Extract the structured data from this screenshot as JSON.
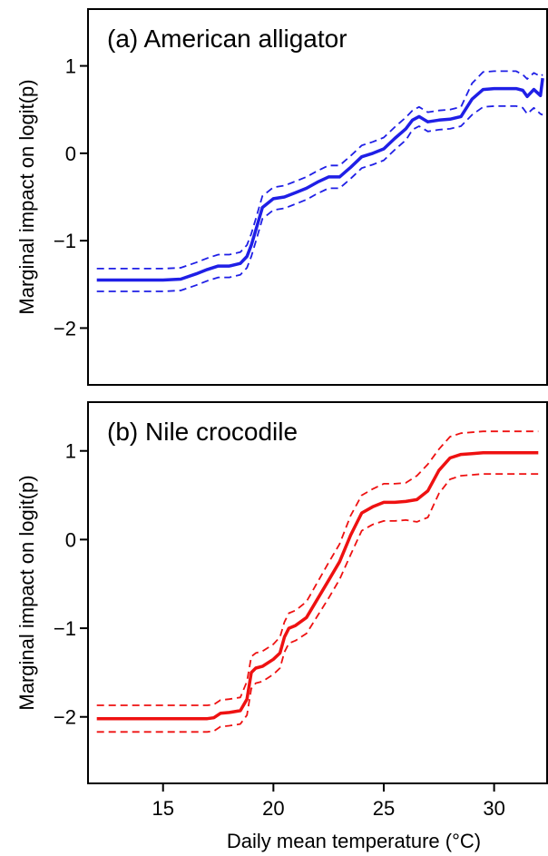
{
  "chart_data": [
    {
      "type": "line",
      "title": "(a) American alligator",
      "xlabel": "",
      "ylabel": "Marginal impact on logit(p)",
      "xlim": [
        11.6,
        32.4
      ],
      "ylim": [
        -2.65,
        1.65
      ],
      "xticks": [
        15,
        20,
        25,
        30
      ],
      "yticks": [
        1,
        0,
        -1,
        -2
      ],
      "ytick_labels": [
        "1",
        "0",
        "−1",
        "−2"
      ],
      "grid": false,
      "color": "#1f1fe6",
      "x": [
        12,
        13,
        14,
        15,
        15.8,
        16.5,
        17,
        17.5,
        18,
        18.5,
        18.8,
        19,
        19.2,
        19.5,
        20,
        20.5,
        21,
        21.5,
        22,
        22.5,
        23,
        23.5,
        24,
        24.5,
        25,
        25.5,
        26,
        26.3,
        26.6,
        27,
        27.5,
        28,
        28.5,
        29,
        29.5,
        30,
        30.5,
        31,
        31.3,
        31.5,
        31.8,
        32.1,
        32.2
      ],
      "series": [
        {
          "role": "estimate",
          "style": "solid",
          "values": [
            -1.45,
            -1.45,
            -1.45,
            -1.45,
            -1.44,
            -1.38,
            -1.33,
            -1.29,
            -1.29,
            -1.26,
            -1.18,
            -1.05,
            -0.88,
            -0.62,
            -0.52,
            -0.5,
            -0.45,
            -0.4,
            -0.33,
            -0.27,
            -0.27,
            -0.16,
            -0.04,
            0.0,
            0.05,
            0.17,
            0.28,
            0.38,
            0.42,
            0.36,
            0.38,
            0.39,
            0.42,
            0.62,
            0.73,
            0.74,
            0.74,
            0.74,
            0.72,
            0.65,
            0.73,
            0.66,
            0.86
          ]
        },
        {
          "role": "upper",
          "style": "dashed",
          "values": [
            -1.32,
            -1.32,
            -1.32,
            -1.32,
            -1.31,
            -1.25,
            -1.2,
            -1.16,
            -1.16,
            -1.13,
            -1.05,
            -0.92,
            -0.75,
            -0.49,
            -0.39,
            -0.37,
            -0.32,
            -0.27,
            -0.2,
            -0.14,
            -0.14,
            -0.03,
            0.09,
            0.13,
            0.18,
            0.3,
            0.41,
            0.49,
            0.53,
            0.47,
            0.49,
            0.5,
            0.53,
            0.8,
            0.93,
            0.94,
            0.94,
            0.94,
            0.9,
            0.85,
            0.92,
            0.88,
            0.9
          ]
        },
        {
          "role": "lower",
          "style": "dashed",
          "values": [
            -1.58,
            -1.58,
            -1.58,
            -1.58,
            -1.57,
            -1.51,
            -1.46,
            -1.42,
            -1.42,
            -1.39,
            -1.31,
            -1.18,
            -1.01,
            -0.75,
            -0.65,
            -0.63,
            -0.58,
            -0.53,
            -0.46,
            -0.4,
            -0.4,
            -0.29,
            -0.17,
            -0.13,
            -0.08,
            0.04,
            0.15,
            0.27,
            0.31,
            0.25,
            0.27,
            0.28,
            0.31,
            0.44,
            0.53,
            0.54,
            0.54,
            0.54,
            0.52,
            0.45,
            0.52,
            0.45,
            0.44
          ]
        }
      ]
    },
    {
      "type": "line",
      "title": "(b) Nile crocodile",
      "xlabel": "Daily mean temperature (°C)",
      "ylabel": "Marginal impact on logit(p)",
      "xlim": [
        11.6,
        32.4
      ],
      "ylim": [
        -2.75,
        1.55
      ],
      "xticks": [
        15,
        20,
        25,
        30
      ],
      "xtick_labels": [
        "15",
        "20",
        "25",
        "30"
      ],
      "yticks": [
        1,
        0,
        -1,
        -2
      ],
      "ytick_labels": [
        "1",
        "0",
        "−1",
        "−2"
      ],
      "grid": false,
      "color": "#ee1111",
      "x": [
        12,
        13,
        14,
        15,
        16,
        17,
        17.3,
        17.6,
        18,
        18.5,
        18.8,
        19,
        19.2,
        19.5,
        20,
        20.3,
        20.5,
        20.7,
        21,
        21.5,
        22,
        22.5,
        23,
        23.5,
        24,
        24.5,
        25,
        25.5,
        26,
        26.5,
        27,
        27.5,
        28,
        28.5,
        29,
        29.5,
        30,
        31,
        32
      ],
      "series": [
        {
          "role": "estimate",
          "style": "solid",
          "values": [
            -2.02,
            -2.02,
            -2.02,
            -2.02,
            -2.02,
            -2.02,
            -2.01,
            -1.96,
            -1.95,
            -1.93,
            -1.8,
            -1.5,
            -1.45,
            -1.43,
            -1.35,
            -1.28,
            -1.1,
            -1.0,
            -0.97,
            -0.88,
            -0.67,
            -0.46,
            -0.25,
            0.05,
            0.3,
            0.37,
            0.42,
            0.42,
            0.43,
            0.45,
            0.55,
            0.78,
            0.92,
            0.96,
            0.97,
            0.98,
            0.98,
            0.98,
            0.98
          ]
        },
        {
          "role": "upper",
          "style": "dashed",
          "values": [
            -1.87,
            -1.87,
            -1.87,
            -1.87,
            -1.87,
            -1.87,
            -1.86,
            -1.81,
            -1.8,
            -1.78,
            -1.6,
            -1.32,
            -1.28,
            -1.26,
            -1.18,
            -1.1,
            -0.93,
            -0.83,
            -0.8,
            -0.7,
            -0.48,
            -0.26,
            -0.05,
            0.27,
            0.5,
            0.57,
            0.63,
            0.63,
            0.64,
            0.72,
            0.85,
            1.02,
            1.16,
            1.2,
            1.21,
            1.22,
            1.22,
            1.22,
            1.22
          ]
        },
        {
          "role": "lower",
          "style": "dashed",
          "values": [
            -2.17,
            -2.17,
            -2.17,
            -2.17,
            -2.17,
            -2.17,
            -2.16,
            -2.11,
            -2.1,
            -2.08,
            -1.98,
            -1.68,
            -1.62,
            -1.6,
            -1.52,
            -1.45,
            -1.27,
            -1.17,
            -1.14,
            -1.06,
            -0.86,
            -0.66,
            -0.45,
            -0.17,
            0.1,
            0.17,
            0.21,
            0.21,
            0.22,
            0.2,
            0.25,
            0.52,
            0.68,
            0.72,
            0.73,
            0.74,
            0.74,
            0.74,
            0.74
          ]
        }
      ]
    }
  ]
}
